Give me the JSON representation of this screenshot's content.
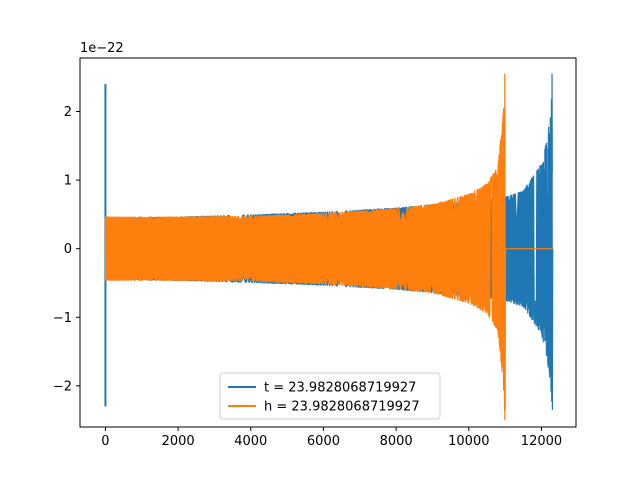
{
  "chart_data": {
    "type": "line",
    "title": "",
    "xlabel": "",
    "ylabel": "",
    "y_scale_label": "1e−22",
    "xlim": [
      -700,
      12950
    ],
    "ylim": [
      -2.6,
      2.78
    ],
    "x_ticks": [
      0,
      2000,
      4000,
      6000,
      8000,
      10000,
      12000
    ],
    "x_tick_labels": [
      "0",
      "2000",
      "4000",
      "6000",
      "8000",
      "10000",
      "12000"
    ],
    "y_ticks": [
      -2,
      -1,
      0,
      1,
      2
    ],
    "y_tick_labels": [
      "−2",
      "−1",
      "0",
      "1",
      "2"
    ],
    "grid": false,
    "legend_position": "lower-center",
    "series": [
      {
        "name": "t = 23.9828068719927",
        "color": "#1f77b4",
        "x_range": [
          0,
          12300
        ],
        "envelope": [
          [
            0,
            0.45
          ],
          [
            2000,
            0.47
          ],
          [
            4000,
            0.5
          ],
          [
            6000,
            0.54
          ],
          [
            8000,
            0.6
          ],
          [
            9000,
            0.65
          ],
          [
            10000,
            0.7
          ],
          [
            10500,
            0.72
          ],
          [
            11000,
            0.76
          ],
          [
            11500,
            0.85
          ],
          [
            12000,
            1.25
          ],
          [
            12150,
            1.6
          ],
          [
            12250,
            2.0
          ],
          [
            12290,
            2.3
          ]
        ],
        "spike_at_start": [
          2.4,
          -2.3
        ],
        "peak": [
          12290,
          2.55,
          -2.35
        ]
      },
      {
        "name": "h = 23.9828068719927",
        "color": "#ff7f0e",
        "x_range": [
          0,
          12300
        ],
        "envelope": [
          [
            0,
            0.47
          ],
          [
            2000,
            0.47
          ],
          [
            4000,
            0.48
          ],
          [
            6000,
            0.52
          ],
          [
            8000,
            0.59
          ],
          [
            9000,
            0.65
          ],
          [
            10000,
            0.8
          ],
          [
            10500,
            0.95
          ],
          [
            10800,
            1.2
          ],
          [
            10950,
            2.0
          ],
          [
            10990,
            2.5
          ]
        ],
        "peak": [
          10990,
          2.55,
          -2.35
        ],
        "flat_after": 11000
      }
    ]
  }
}
